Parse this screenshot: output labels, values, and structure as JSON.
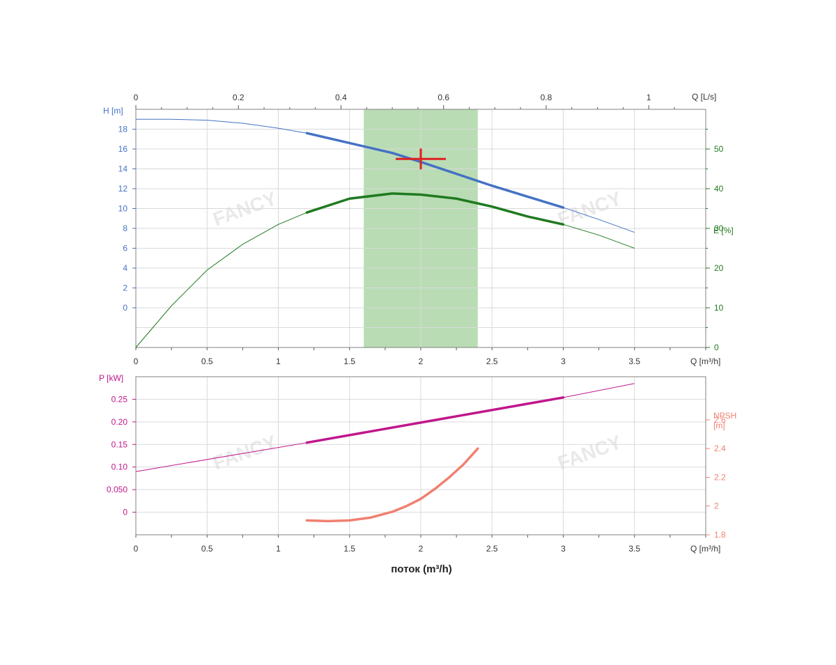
{
  "colors": {
    "head": "#4472c4",
    "efficiency": "#1f7a1f",
    "power": "#c0178c",
    "npsh": "#f08070",
    "band": "#b9dcb4",
    "duty": "#e02020",
    "axis_dark": "#333333"
  },
  "watermarks": [
    "FANCY",
    "FANCY",
    "FANCY",
    "FANCY"
  ],
  "chart_data": [
    {
      "type": "line",
      "x_axis": {
        "label": "Q [m³/h]",
        "ticks": [
          "0",
          "0.5",
          "1",
          "1.5",
          "2",
          "2.5",
          "3",
          "3.5"
        ],
        "range": [
          0,
          4
        ]
      },
      "x_top_axis": {
        "label": "Q [L/s]",
        "ticks": [
          "0",
          "0.2",
          "0.4",
          "0.6",
          "0.8",
          "1"
        ]
      },
      "y_left_axis": {
        "label": "H [m]",
        "ticks": [
          "0",
          "2",
          "4",
          "6",
          "8",
          "10",
          "12",
          "14",
          "16",
          "18"
        ],
        "range": [
          -4,
          20
        ]
      },
      "y_right_axis": {
        "label": "E [%]",
        "ticks": [
          "0",
          "10",
          "20",
          "30",
          "40",
          "50"
        ],
        "range": [
          0,
          60
        ]
      },
      "operating_range": {
        "x": [
          1.6,
          2.4
        ]
      },
      "duty_point": {
        "x": 2.0,
        "y": 15.0
      },
      "series": [
        {
          "axis": "left",
          "x": [
            0,
            0.25,
            0.5,
            0.75,
            1.0,
            1.2,
            1.5,
            1.8,
            2.0,
            2.25,
            2.5,
            2.75,
            3.0,
            3.25,
            3.5
          ],
          "y": [
            19.0,
            19.0,
            18.9,
            18.6,
            18.1,
            17.6,
            16.6,
            15.6,
            14.7,
            13.5,
            12.3,
            11.2,
            10.1,
            8.9,
            7.6
          ],
          "bold_range": [
            1.2,
            3.0
          ]
        },
        {
          "axis": "right",
          "x": [
            0,
            0.25,
            0.5,
            0.75,
            1.0,
            1.2,
            1.5,
            1.8,
            2.0,
            2.25,
            2.5,
            2.75,
            3.0,
            3.25,
            3.5
          ],
          "y": [
            0,
            10.5,
            19.5,
            26.0,
            31.0,
            34.0,
            37.5,
            38.8,
            38.5,
            37.5,
            35.5,
            33.0,
            31.0,
            28.3,
            25.0
          ],
          "bold_range": [
            1.2,
            3.0
          ]
        }
      ]
    },
    {
      "type": "line",
      "x_axis": {
        "label": "Q [m³/h]",
        "ticks": [
          "0",
          "0.5",
          "1",
          "1.5",
          "2",
          "2.5",
          "3",
          "3.5"
        ],
        "range": [
          0,
          4
        ]
      },
      "title_bottom": "поток (m³/h)",
      "y_left_axis": {
        "label": "P [kW]",
        "ticks": [
          "0",
          "0.050",
          "0.10",
          "0.15",
          "0.20",
          "0.25"
        ],
        "range": [
          -0.05,
          0.3
        ]
      },
      "y_right_axis": {
        "label_line1": "NPSH",
        "label_line2": "[m]",
        "ticks": [
          "1.8",
          "2",
          "2.2",
          "2.4",
          "2.6"
        ],
        "range": [
          1.8,
          2.9
        ]
      },
      "series": [
        {
          "axis": "left",
          "x": [
            0,
            1.2,
            3.0,
            3.5
          ],
          "y": [
            0.09,
            0.154,
            0.254,
            0.285
          ],
          "bold_range": [
            1.2,
            3.0
          ]
        },
        {
          "axis": "right",
          "x": [
            1.2,
            1.35,
            1.5,
            1.65,
            1.8,
            1.9,
            2.0,
            2.1,
            2.2,
            2.3,
            2.4
          ],
          "y": [
            1.9,
            1.895,
            1.9,
            1.92,
            1.96,
            2.0,
            2.05,
            2.12,
            2.2,
            2.29,
            2.4
          ],
          "bold_range": [
            1.2,
            2.4
          ]
        }
      ]
    }
  ]
}
